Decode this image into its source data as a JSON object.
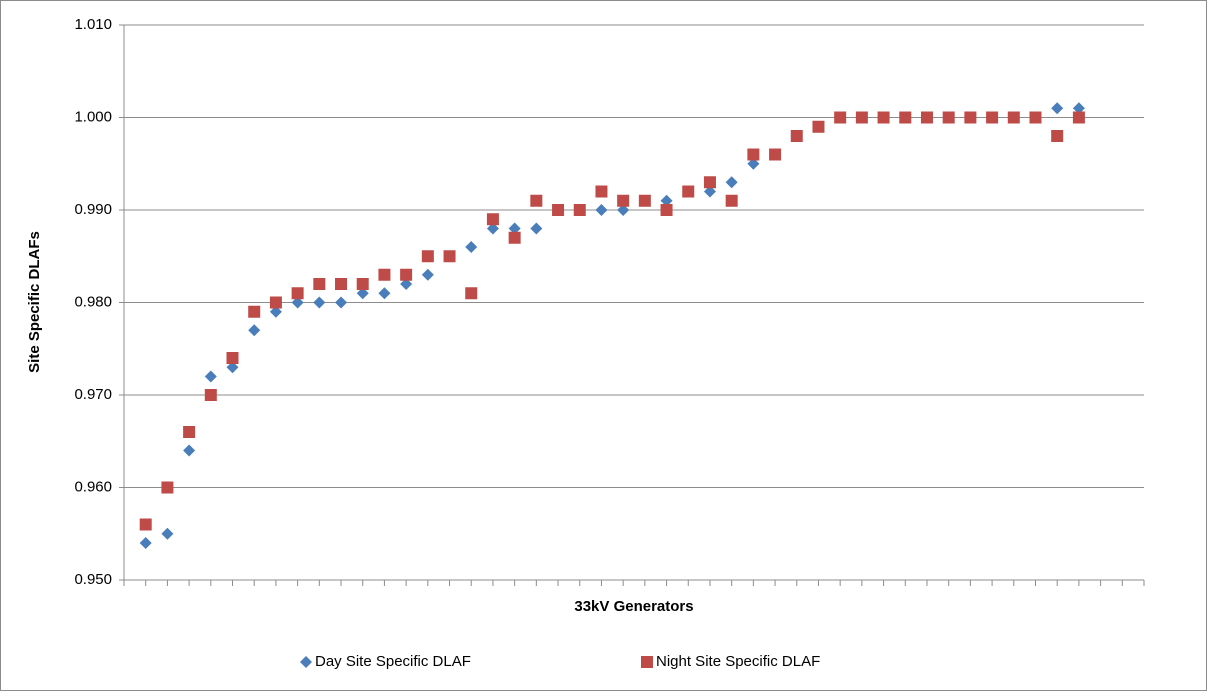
{
  "chart_data": {
    "type": "scatter",
    "x_label": "33kV Generators",
    "y_label": "Site Specific DLAFs",
    "categories": [
      null,
      null,
      null,
      null,
      null,
      null,
      null,
      null,
      null,
      null,
      null,
      null,
      null,
      null,
      null,
      null,
      null,
      null,
      null,
      null,
      null,
      null,
      null,
      null,
      null,
      null,
      null,
      null,
      null,
      null,
      null,
      null,
      null,
      null,
      null,
      null,
      null,
      null,
      null,
      null,
      null,
      null,
      null,
      null,
      null,
      null,
      null,
      null
    ],
    "series": [
      {
        "name": "Day Site Specific DLAF",
        "color": "#4a7ebb",
        "marker": "diamond",
        "values": [
          null,
          0.954,
          0.955,
          0.964,
          0.972,
          0.973,
          0.977,
          0.979,
          0.98,
          0.98,
          0.98,
          0.981,
          0.981,
          0.982,
          0.983,
          0.985,
          0.986,
          0.988,
          0.988,
          0.988,
          0.99,
          0.99,
          0.99,
          0.99,
          0.991,
          0.991,
          0.992,
          0.992,
          0.993,
          0.995,
          0.996,
          0.998,
          0.999,
          1.0,
          1.0,
          1.0,
          1.0,
          1.0,
          1.0,
          1.0,
          1.0,
          1.0,
          1.0,
          1.001,
          1.001,
          null,
          null,
          null
        ]
      },
      {
        "name": "Night Site Specific DLAF",
        "color": "#be4b48",
        "marker": "square",
        "values": [
          null,
          0.956,
          0.96,
          0.966,
          0.97,
          0.974,
          0.979,
          0.98,
          0.981,
          0.982,
          0.982,
          0.982,
          0.983,
          0.983,
          0.985,
          0.985,
          0.981,
          0.989,
          0.987,
          0.991,
          0.99,
          0.99,
          0.992,
          0.991,
          0.991,
          0.99,
          0.992,
          0.993,
          0.991,
          0.996,
          0.996,
          0.998,
          0.999,
          1.0,
          1.0,
          1.0,
          1.0,
          1.0,
          1.0,
          1.0,
          1.0,
          1.0,
          1.0,
          0.998,
          1.0,
          null,
          null,
          null
        ]
      }
    ],
    "ylim": [
      0.95,
      1.01
    ],
    "yticks": [
      {
        "value": 0.95,
        "label": "0.950"
      },
      {
        "value": 0.96,
        "label": "0.960"
      },
      {
        "value": 0.97,
        "label": "0.970"
      },
      {
        "value": 0.98,
        "label": "0.980"
      },
      {
        "value": 0.99,
        "label": "0.990"
      },
      {
        "value": 1.0,
        "label": "1.000"
      },
      {
        "value": 1.01,
        "label": "1.010"
      }
    ],
    "grid": true,
    "legend": "bottom"
  }
}
